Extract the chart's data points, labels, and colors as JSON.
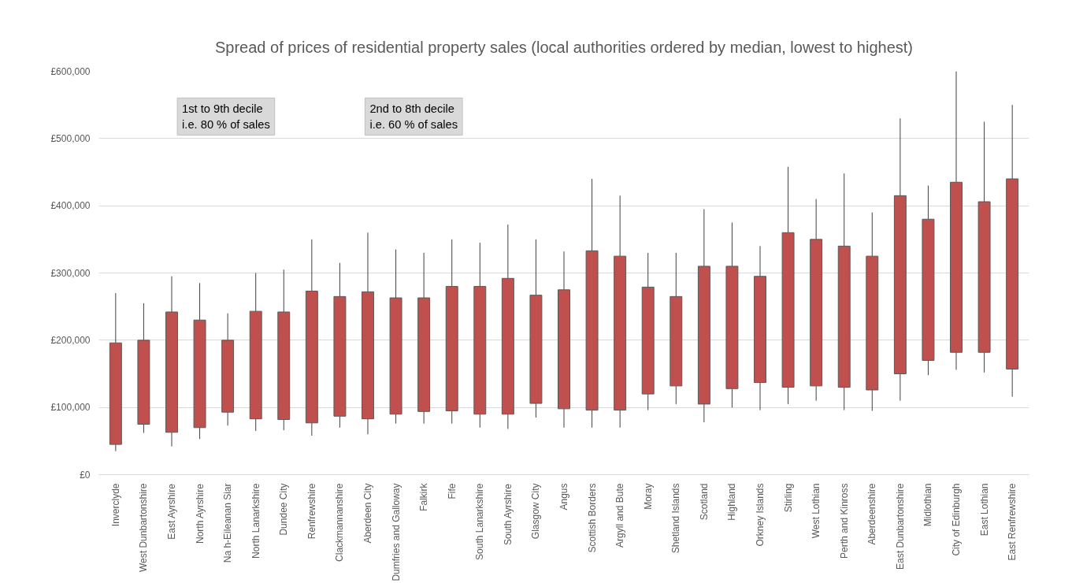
{
  "chart_data": {
    "type": "candlestick",
    "title": "Spread of prices of residential property sales (local authorities ordered by median, lowest to highest)",
    "categories": [
      "Inverclyde",
      "West Dunbartonshire",
      "East Ayrshire",
      "North Ayrshire",
      "Na h-Eileanan Siar",
      "North Lanarkshire",
      "Dundee City",
      "Renfrewshire",
      "Clackmannanshire",
      "Aberdeen City",
      "Dumfries and Galloway",
      "Falkirk",
      "Fife",
      "South Lanarkshire",
      "South Ayrshire",
      "Glasgow City",
      "Angus",
      "Scottish Borders",
      "Argyll and Bute",
      "Moray",
      "Shetland Islands",
      "Scotland",
      "Highland",
      "Orkney Islands",
      "Stirling",
      "West Lothian",
      "Perth and Kinross",
      "Aberdeenshire",
      "East Dunbartonshire",
      "Midlothian",
      "City of Edinburgh",
      "East Lothian",
      "East Renfrewshire"
    ],
    "ohlc": [
      [
        45000,
        270000,
        35000,
        196000
      ],
      [
        75000,
        255000,
        62000,
        200000
      ],
      [
        63000,
        295000,
        42000,
        242000
      ],
      [
        70000,
        285000,
        53000,
        230000
      ],
      [
        93000,
        240000,
        73000,
        200000
      ],
      [
        83000,
        300000,
        65000,
        243000
      ],
      [
        82000,
        305000,
        66000,
        242000
      ],
      [
        77000,
        350000,
        58000,
        273000
      ],
      [
        87000,
        315000,
        70000,
        265000
      ],
      [
        83000,
        360000,
        60000,
        272000
      ],
      [
        90000,
        335000,
        76000,
        263000
      ],
      [
        94000,
        330000,
        76000,
        263000
      ],
      [
        95000,
        350000,
        76000,
        280000
      ],
      [
        90000,
        345000,
        70000,
        280000
      ],
      [
        90000,
        372000,
        68000,
        292000
      ],
      [
        106000,
        350000,
        85000,
        267000
      ],
      [
        98000,
        332000,
        70000,
        275000
      ],
      [
        96000,
        440000,
        70000,
        333000
      ],
      [
        96000,
        415000,
        70000,
        325000
      ],
      [
        120000,
        330000,
        96000,
        279000
      ],
      [
        132000,
        330000,
        105000,
        265000
      ],
      [
        105000,
        395000,
        78000,
        310000
      ],
      [
        128000,
        375000,
        100000,
        310000
      ],
      [
        137000,
        340000,
        96000,
        295000
      ],
      [
        130000,
        458000,
        105000,
        360000
      ],
      [
        132000,
        410000,
        110000,
        350000
      ],
      [
        130000,
        448000,
        96000,
        340000
      ],
      [
        126000,
        390000,
        95000,
        325000
      ],
      [
        150000,
        530000,
        110000,
        415000
      ],
      [
        170000,
        430000,
        148000,
        380000
      ],
      [
        182000,
        600000,
        156000,
        435000
      ],
      [
        182000,
        525000,
        152000,
        406000
      ],
      [
        157000,
        550000,
        116000,
        440000
      ]
    ],
    "color": "#c0504d",
    "ylim": [
      0,
      600000
    ],
    "yticks": [
      {
        "value": 0,
        "label": "£0"
      },
      {
        "value": 100000,
        "label": "£100,000"
      },
      {
        "value": 200000,
        "label": "£200,000"
      },
      {
        "value": 300000,
        "label": "£300,000"
      },
      {
        "value": 400000,
        "label": "£400,000"
      },
      {
        "value": 500000,
        "label": "£500,000"
      },
      {
        "value": 600000,
        "label": "£600,000"
      }
    ],
    "grid": "y",
    "annotations": [
      "1st to 9th decile\ni.e. 80 % of sales",
      "2nd to 8th decile\ni.e. 60 % of sales"
    ]
  }
}
